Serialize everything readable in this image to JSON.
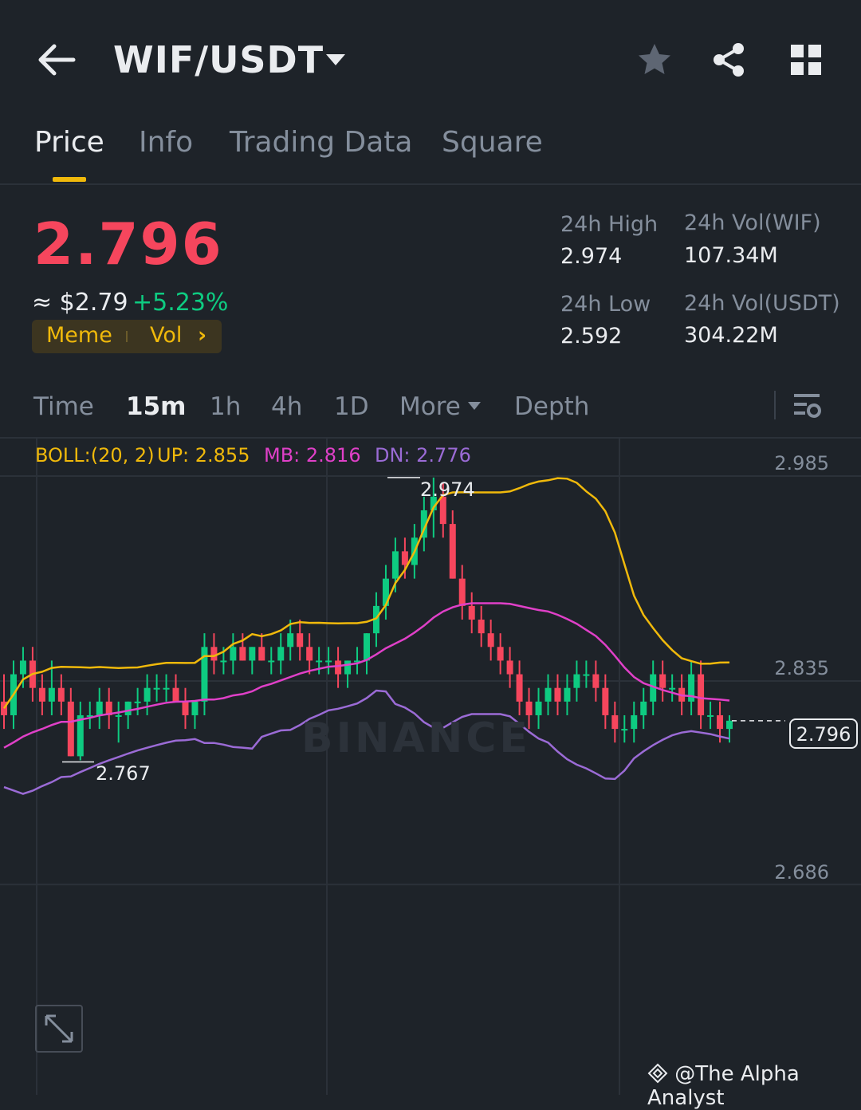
{
  "header": {
    "back_icon": "arrow-left-icon",
    "pair": "WIF/USDT",
    "icons": [
      "star-icon",
      "share-icon",
      "grid-icon"
    ]
  },
  "tabs": [
    {
      "label": "Price",
      "active": true
    },
    {
      "label": "Info",
      "active": false
    },
    {
      "label": "Trading Data",
      "active": false
    },
    {
      "label": "Square",
      "active": false
    }
  ],
  "ticker": {
    "last_price": "2.796",
    "fiat": "≈ $2.79",
    "change": "+5.23%",
    "tag_meme": "Meme",
    "tag_vol": "Vol",
    "tag_chevron": "›",
    "high_label": "24h High",
    "high_value": "2.974",
    "low_label": "24h Low",
    "low_value": "2.592",
    "vol_base_label": "24h Vol(WIF)",
    "vol_base_value": "107.34M",
    "vol_quote_label": "24h Vol(USDT)",
    "vol_quote_value": "304.22M"
  },
  "intervals": {
    "time": "Time",
    "m15": "15m",
    "h1": "1h",
    "h4": "4h",
    "d1": "1D",
    "more": "More",
    "depth": "Depth"
  },
  "chart": {
    "boll_label": "BOLL:(20, 2)",
    "up": "UP: 2.855",
    "mb": "MB: 2.816",
    "dn": "DN: 2.776",
    "axis": {
      "top": "2.985",
      "mid": "2.835",
      "low": "2.686"
    },
    "high_marker": "2.974",
    "low_marker": "2.767",
    "current_tag": "2.796",
    "watermark": "BINANCE",
    "colors": {
      "up": "#0ecb81",
      "down": "#f6465d",
      "boll_up": "#f0b90b",
      "boll_mb": "#e040c8",
      "boll_dn": "#9b6bd6"
    }
  },
  "chart_data": {
    "type": "candlestick",
    "interval": "15m",
    "y_ticks": [
      2.985,
      2.835,
      2.686
    ],
    "ylim": [
      2.6,
      3.0
    ],
    "current_price": 2.796,
    "marked_high": 2.974,
    "marked_low": 2.767,
    "indicator": {
      "name": "BOLL",
      "period": 20,
      "k": 2,
      "up": 2.855,
      "mb": 2.816,
      "dn": 2.776
    },
    "candles": [
      [
        2.81,
        2.83,
        2.79,
        2.8
      ],
      [
        2.8,
        2.84,
        2.79,
        2.83
      ],
      [
        2.83,
        2.85,
        2.82,
        2.84
      ],
      [
        2.84,
        2.85,
        2.81,
        2.82
      ],
      [
        2.82,
        2.83,
        2.8,
        2.81
      ],
      [
        2.81,
        2.84,
        2.8,
        2.82
      ],
      [
        2.82,
        2.83,
        2.8,
        2.81
      ],
      [
        2.81,
        2.82,
        2.77,
        2.77
      ],
      [
        2.77,
        2.81,
        2.767,
        2.8
      ],
      [
        2.8,
        2.81,
        2.79,
        2.8
      ],
      [
        2.8,
        2.82,
        2.79,
        2.81
      ],
      [
        2.81,
        2.82,
        2.79,
        2.8
      ],
      [
        2.8,
        2.81,
        2.78,
        2.8
      ],
      [
        2.8,
        2.81,
        2.79,
        2.81
      ],
      [
        2.81,
        2.82,
        2.8,
        2.81
      ],
      [
        2.81,
        2.83,
        2.8,
        2.82
      ],
      [
        2.82,
        2.83,
        2.81,
        2.82
      ],
      [
        2.82,
        2.83,
        2.81,
        2.82
      ],
      [
        2.82,
        2.83,
        2.81,
        2.81
      ],
      [
        2.81,
        2.82,
        2.79,
        2.8
      ],
      [
        2.8,
        2.81,
        2.79,
        2.81
      ],
      [
        2.81,
        2.86,
        2.8,
        2.85
      ],
      [
        2.85,
        2.86,
        2.83,
        2.84
      ],
      [
        2.84,
        2.85,
        2.83,
        2.84
      ],
      [
        2.84,
        2.86,
        2.83,
        2.85
      ],
      [
        2.85,
        2.86,
        2.84,
        2.84
      ],
      [
        2.84,
        2.85,
        2.83,
        2.85
      ],
      [
        2.85,
        2.86,
        2.84,
        2.84
      ],
      [
        2.84,
        2.85,
        2.83,
        2.84
      ],
      [
        2.84,
        2.86,
        2.83,
        2.85
      ],
      [
        2.85,
        2.87,
        2.84,
        2.86
      ],
      [
        2.86,
        2.87,
        2.84,
        2.85
      ],
      [
        2.85,
        2.86,
        2.83,
        2.84
      ],
      [
        2.84,
        2.85,
        2.83,
        2.84
      ],
      [
        2.84,
        2.85,
        2.83,
        2.84
      ],
      [
        2.84,
        2.85,
        2.82,
        2.83
      ],
      [
        2.83,
        2.84,
        2.82,
        2.84
      ],
      [
        2.84,
        2.85,
        2.83,
        2.84
      ],
      [
        2.84,
        2.86,
        2.83,
        2.86
      ],
      [
        2.86,
        2.89,
        2.85,
        2.88
      ],
      [
        2.88,
        2.91,
        2.87,
        2.9
      ],
      [
        2.9,
        2.93,
        2.89,
        2.92
      ],
      [
        2.92,
        2.93,
        2.9,
        2.91
      ],
      [
        2.91,
        2.94,
        2.9,
        2.93
      ],
      [
        2.93,
        2.96,
        2.92,
        2.95
      ],
      [
        2.95,
        2.974,
        2.93,
        2.96
      ],
      [
        2.96,
        2.97,
        2.93,
        2.94
      ],
      [
        2.94,
        2.95,
        2.9,
        2.9
      ],
      [
        2.9,
        2.91,
        2.87,
        2.88
      ],
      [
        2.88,
        2.89,
        2.86,
        2.87
      ],
      [
        2.87,
        2.88,
        2.85,
        2.86
      ],
      [
        2.86,
        2.87,
        2.84,
        2.85
      ],
      [
        2.85,
        2.86,
        2.83,
        2.84
      ],
      [
        2.84,
        2.85,
        2.82,
        2.83
      ],
      [
        2.83,
        2.84,
        2.8,
        2.81
      ],
      [
        2.81,
        2.82,
        2.79,
        2.8
      ],
      [
        2.8,
        2.82,
        2.79,
        2.81
      ],
      [
        2.81,
        2.83,
        2.8,
        2.82
      ],
      [
        2.82,
        2.83,
        2.8,
        2.81
      ],
      [
        2.81,
        2.83,
        2.8,
        2.82
      ],
      [
        2.82,
        2.84,
        2.81,
        2.83
      ],
      [
        2.83,
        2.84,
        2.82,
        2.83
      ],
      [
        2.83,
        2.84,
        2.81,
        2.82
      ],
      [
        2.82,
        2.83,
        2.79,
        2.8
      ],
      [
        2.8,
        2.81,
        2.78,
        2.79
      ],
      [
        2.79,
        2.8,
        2.78,
        2.79
      ],
      [
        2.79,
        2.81,
        2.78,
        2.8
      ],
      [
        2.8,
        2.82,
        2.79,
        2.81
      ],
      [
        2.81,
        2.84,
        2.8,
        2.83
      ],
      [
        2.83,
        2.84,
        2.81,
        2.82
      ],
      [
        2.82,
        2.83,
        2.81,
        2.82
      ],
      [
        2.82,
        2.83,
        2.8,
        2.81
      ],
      [
        2.81,
        2.84,
        2.8,
        2.83
      ],
      [
        2.83,
        2.84,
        2.79,
        2.8
      ],
      [
        2.8,
        2.81,
        2.79,
        2.8
      ],
      [
        2.8,
        2.81,
        2.78,
        2.79
      ],
      [
        2.79,
        2.8,
        2.78,
        2.796
      ]
    ]
  }
}
